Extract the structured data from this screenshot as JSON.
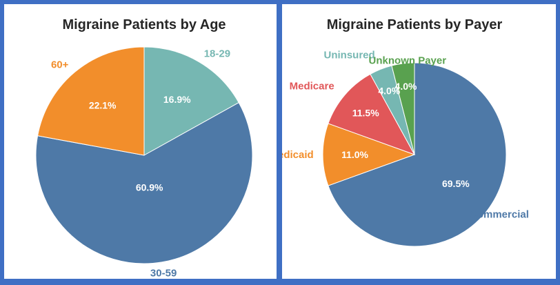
{
  "chart_data": [
    {
      "type": "pie",
      "title": "Migraine Patients by Age",
      "categories": [
        "18-29",
        "30-59",
        "60+"
      ],
      "values": [
        16.9,
        60.9,
        22.1
      ],
      "value_labels": [
        "16.9%",
        "60.9%",
        "22.1%"
      ],
      "colors": [
        "#76b7b2",
        "#4e79a7",
        "#f28e2b"
      ]
    },
    {
      "type": "pie",
      "title": "Migraine Patients by Payer",
      "categories": [
        "Commercial",
        "Medicaid",
        "Medicare",
        "Uninsured",
        "Unknown Payer"
      ],
      "values": [
        69.5,
        11.0,
        11.5,
        4.0,
        4.0
      ],
      "value_labels": [
        "69.5%",
        "11.0%",
        "11.5%",
        "4.0%",
        "4.0%"
      ],
      "colors": [
        "#4e79a7",
        "#f28e2b",
        "#e15759",
        "#76b7b2",
        "#59a14f"
      ]
    }
  ],
  "colors": {
    "frame": "#3f6fc4",
    "panel_background": "#ffffff",
    "title_text": "#262626",
    "slice_label_text": "#ffffff"
  }
}
